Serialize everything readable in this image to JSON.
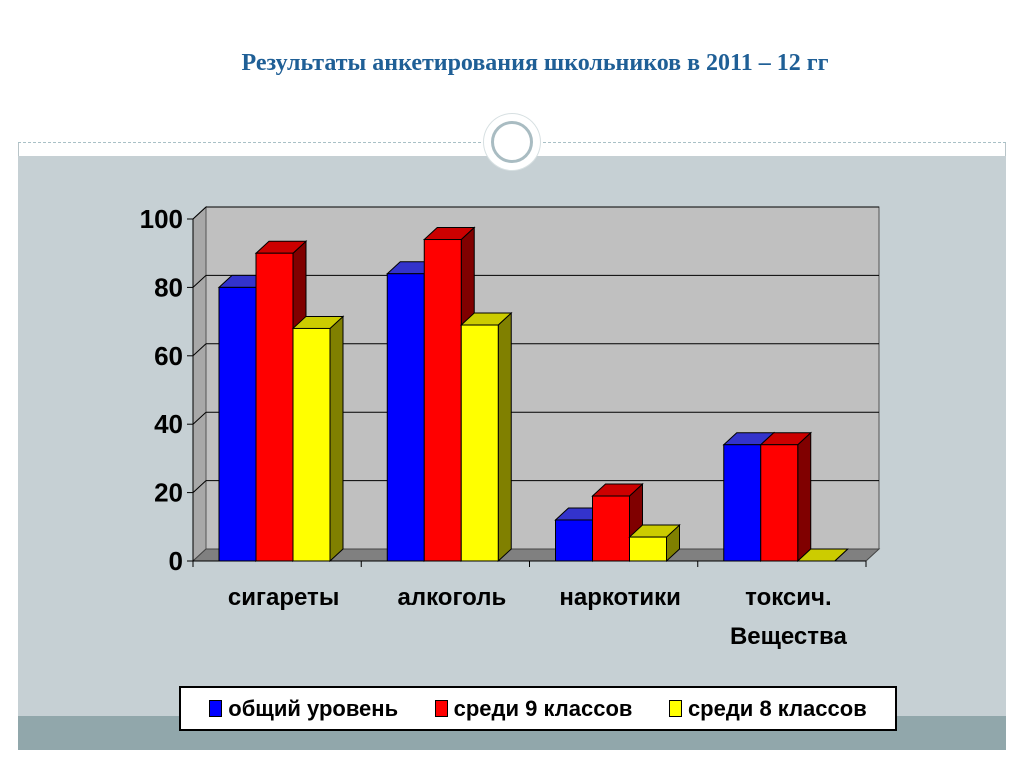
{
  "slide": {
    "title": "Результаты анкетирования школьников в 2011 – 12 гг"
  },
  "colors": {
    "title": "#1f5f96",
    "series_front": [
      "#0000ff",
      "#ff0000",
      "#ffff00"
    ],
    "series_top": [
      "#3333cc",
      "#cc0000",
      "#cccc00"
    ],
    "series_side": [
      "#000080",
      "#800000",
      "#808000"
    ],
    "plot_wall": "#c0c0c0",
    "plot_floor": "#808080"
  },
  "chart_data": {
    "type": "bar",
    "categories": [
      [
        "сигареты"
      ],
      [
        "алкоголь"
      ],
      [
        "наркотики"
      ],
      [
        "токсич.",
        "Вещества"
      ]
    ],
    "series": [
      {
        "name": "общий уровень",
        "values": [
          80,
          84,
          12,
          34
        ]
      },
      {
        "name": "среди 9 классов",
        "values": [
          90,
          94,
          19,
          34
        ]
      },
      {
        "name": "среди 8 классов",
        "values": [
          68,
          69,
          7,
          0
        ]
      }
    ],
    "ylim": [
      0,
      100
    ],
    "yticks": [
      0,
      20,
      40,
      60,
      80,
      100
    ],
    "grid": true,
    "legend": "bottom",
    "three_d": true
  }
}
